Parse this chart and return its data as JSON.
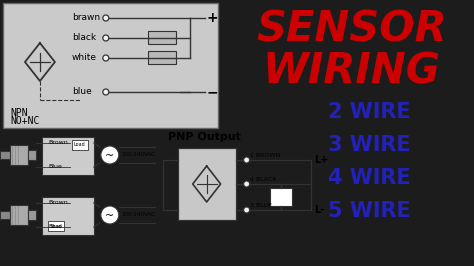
{
  "bg_color": "#1c1c1c",
  "diagram_top_bg": "#d4d4d4",
  "title_line1": "SENSOR",
  "title_line2": "WIRING",
  "title_color": "#cc0000",
  "wire_labels": [
    "2 WIRE",
    "3 WIRE",
    "4 WIRE",
    "5 WIRE"
  ],
  "wire_color": "#2222bb",
  "wire_fontsize": 15,
  "npn_label1": "NPN",
  "npn_label2": "NO+NC",
  "pnp_label": "PNP Output",
  "wire_names_top": [
    "brawn",
    "black",
    "white",
    "blue"
  ],
  "wire_connections": [
    [
      "1 BROWN",
      "L+"
    ],
    [
      "4 BLACK",
      ""
    ],
    [
      "3 BLUE",
      "L-"
    ]
  ],
  "line_color": "#333333",
  "box_bg": "#cccccc",
  "white_bg": "#f0f0f0"
}
